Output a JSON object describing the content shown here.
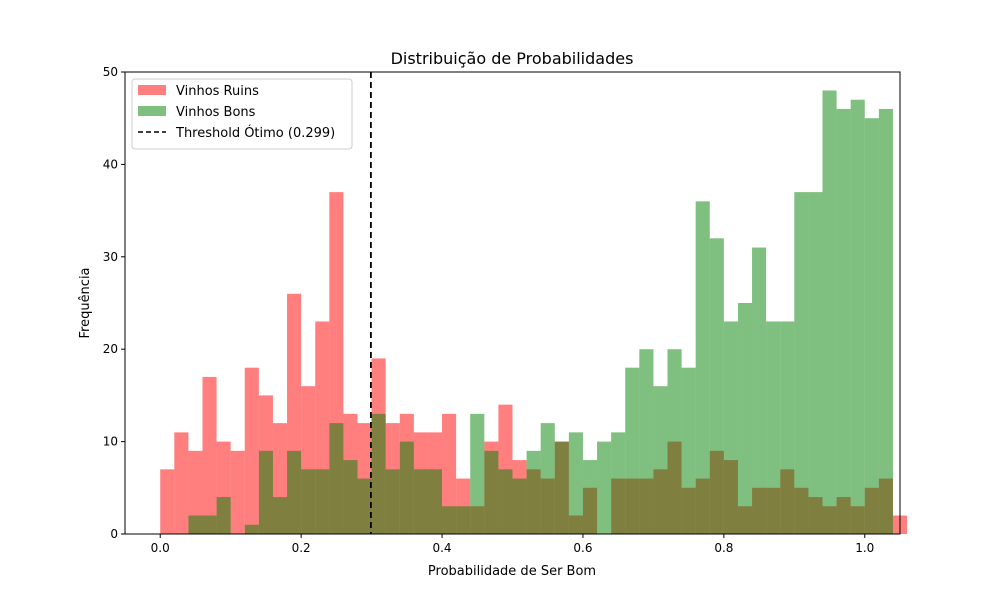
{
  "chart_data": {
    "type": "histogram",
    "title": "Distribuição de Probabilidades",
    "xlabel": "Probabilidade de Ser Bom",
    "ylabel": "Frequência",
    "xlim": [
      -0.05,
      1.05
    ],
    "ylim": [
      0,
      50
    ],
    "xticks": [
      "0.0",
      "0.2",
      "0.4",
      "0.6",
      "0.8",
      "1.0"
    ],
    "yticks": [
      "0",
      "10",
      "20",
      "30",
      "40",
      "50"
    ],
    "bin_width": 0.02,
    "bin_start": 0.0,
    "legend_position": "upper-left",
    "series": [
      {
        "name": "Vinhos Ruins",
        "color": "#ff0000",
        "alpha": 0.5,
        "values": [
          7,
          11,
          9,
          17,
          10,
          9,
          18,
          15,
          12,
          26,
          16,
          23,
          37,
          13,
          12,
          19,
          12,
          13,
          11,
          11,
          13,
          6,
          3,
          10,
          14,
          8,
          7,
          6,
          10,
          2,
          5,
          0,
          6,
          6,
          6,
          7,
          10,
          5,
          6,
          9,
          8,
          3,
          5,
          5,
          7,
          5,
          4,
          3,
          4,
          3,
          5,
          6,
          2,
          0,
          0
        ]
      },
      {
        "name": "Vinhos Bons",
        "color": "#008000",
        "alpha": 0.5,
        "values": [
          0,
          0,
          2,
          2,
          4,
          0,
          1,
          9,
          4,
          9,
          7,
          7,
          12,
          8,
          6,
          13,
          7,
          10,
          7,
          7,
          3,
          3,
          13,
          9,
          7,
          6,
          9,
          12,
          10,
          11,
          8,
          10,
          11,
          18,
          20,
          16,
          20,
          18,
          36,
          32,
          23,
          25,
          31,
          23,
          23,
          37,
          37,
          48,
          46,
          47,
          45,
          46,
          0,
          0,
          0
        ]
      }
    ],
    "threshold": {
      "label": "Threshold Ótimo (0.299)",
      "value": 0.299,
      "color": "#000000",
      "style": "dashed"
    }
  }
}
